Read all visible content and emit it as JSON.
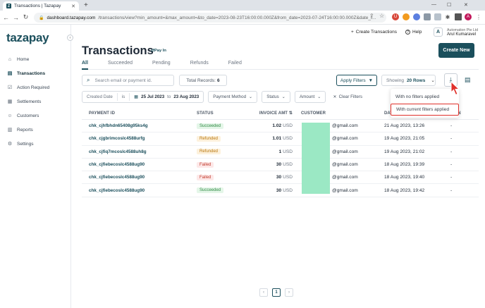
{
  "browser": {
    "tab_title": "Transactions | Tazapay",
    "favicon": "Z",
    "new_tab": "+",
    "url_host": "dashboard.tazapay.com",
    "url_path": "/transactions/view?min_amount=&max_amount=&to_date=2023-08-23T16:00:00.000Z&from_date=2023-07-24T16:00:00.000Z&date_t...",
    "profile_initial": "A"
  },
  "sidebar": {
    "logo": "tazapay",
    "items": [
      {
        "label": "Home",
        "icon": "home-icon"
      },
      {
        "label": "Transactions",
        "icon": "transactions-icon"
      },
      {
        "label": "Action Required",
        "icon": "action-icon"
      },
      {
        "label": "Settlements",
        "icon": "settlements-icon"
      },
      {
        "label": "Customers",
        "icon": "customers-icon"
      },
      {
        "label": "Reports",
        "icon": "reports-icon"
      },
      {
        "label": "Settings",
        "icon": "settings-icon"
      }
    ]
  },
  "header": {
    "create_transactions": "Create Transactions",
    "help": "Help",
    "avatar_initial": "A",
    "org": "Automation Pte Ltd",
    "user": "Arul Kumaravel"
  },
  "page": {
    "title": "Transactions",
    "subtitle": "Pay In",
    "create_new": "Create New"
  },
  "tabs": [
    "All",
    "Succeeded",
    "Pending",
    "Refunds",
    "Failed"
  ],
  "toolbar": {
    "search_placeholder": "Search email or payment id.",
    "total_records_label": "Total Records:",
    "total_records": "6",
    "apply_filters": "Apply Filters",
    "showing_label": "Showing",
    "rows": "20 Rows"
  },
  "filters": {
    "created_date_label": "Created Date",
    "is": "is",
    "from": "25 Jul 2023",
    "to_word": "to",
    "to": "23 Aug 2023",
    "payment_method": "Payment Method",
    "status": "Status",
    "amount": "Amount",
    "clear": "Clear Filters"
  },
  "download_menu": {
    "options": [
      "With no filters applied",
      "With current filters applied"
    ],
    "highlight_color": "#e0302a"
  },
  "table": {
    "headers": [
      "PAYMENT ID",
      "STATUS",
      "INVOICE AMT",
      "CUSTOMER",
      "DATE",
      "ACTION"
    ],
    "header_date_visible": "DAT",
    "header_action_visible": "TION",
    "rows": [
      {
        "id": "chk_cjhfbhdn65408g95ks4g",
        "status": "Succeeded",
        "amt": "1.02",
        "cur": "USD",
        "email": "@gmail.com",
        "date": "21 Aug 2023, 13:26",
        "action": "-"
      },
      {
        "id": "chk_cjgbrimcoslc4588urfg",
        "status": "Refunded",
        "amt": "1.01",
        "cur": "USD",
        "email": "@gmail.com",
        "date": "19 Aug 2023, 21:05",
        "action": "-"
      },
      {
        "id": "chk_cjfiq7mcoslc4588uh8g",
        "status": "Refunded",
        "amt": "1",
        "cur": "USD",
        "email": "@gmail.com",
        "date": "19 Aug 2023, 21:02",
        "action": "-"
      },
      {
        "id": "chk_cjfiebecoslc4588ug90",
        "status": "Failed",
        "amt": "30",
        "cur": "USD",
        "email": "@gmail.com",
        "date": "18 Aug 2023, 19:39",
        "action": "-"
      },
      {
        "id": "chk_cjfiebecoslc4588ug90",
        "status": "Failed",
        "amt": "30",
        "cur": "USD",
        "email": "@gmail.com",
        "date": "18 Aug 2023, 19:40",
        "action": "-"
      },
      {
        "id": "chk_cjfiebecoslc4588ug90",
        "status": "Succeeded",
        "amt": "30",
        "cur": "USD",
        "email": "@gmail.com",
        "date": "18 Aug 2023, 19:42",
        "action": "-"
      }
    ]
  },
  "pagination": {
    "prev": "‹",
    "page": "1",
    "next": "›"
  },
  "colors": {
    "brand": "#1b4f5c",
    "succeeded": "#2f8a43",
    "refunded": "#b9770e",
    "failed": "#c0392b",
    "redacted": "#9be8c4"
  }
}
